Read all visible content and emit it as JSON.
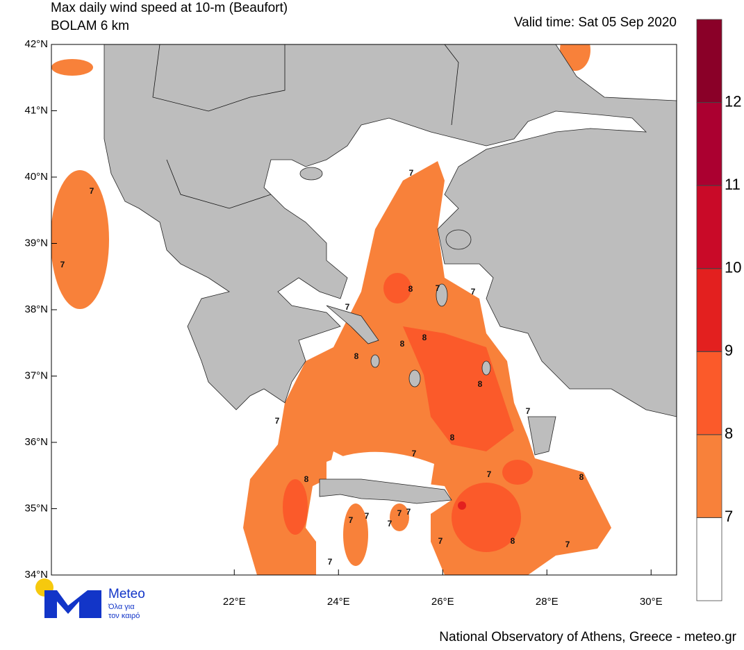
{
  "header": {
    "title": "Max daily wind speed at 10-m (Beaufort)",
    "model": "BOLAM 6 km",
    "valid_time": "Valid time: Sat 05 Sep 2020"
  },
  "map": {
    "lat_ticks": [
      {
        "value": 42,
        "label": "42°N"
      },
      {
        "value": 41,
        "label": "41°N"
      },
      {
        "value": 40,
        "label": "40°N"
      },
      {
        "value": 39,
        "label": "39°N"
      },
      {
        "value": 38,
        "label": "38°N"
      },
      {
        "value": 37,
        "label": "37°N"
      },
      {
        "value": 36,
        "label": "36°N"
      },
      {
        "value": 35,
        "label": "35°N"
      },
      {
        "value": 34,
        "label": "34°N"
      }
    ],
    "lon_ticks": [
      {
        "value": 22,
        "label": "22°E"
      },
      {
        "value": 24,
        "label": "24°E"
      },
      {
        "value": 26,
        "label": "26°E"
      },
      {
        "value": 28,
        "label": "28°E"
      },
      {
        "value": 30,
        "label": "30°E"
      }
    ],
    "lat_range": [
      34,
      42
    ],
    "lon_range": [
      18.49,
      30.49
    ],
    "contour_labels": [
      "7",
      "7",
      "7",
      "8",
      "7",
      "7",
      "7",
      "8",
      "8",
      "8",
      "8",
      "7",
      "8",
      "7",
      "7",
      "8",
      "7",
      "8",
      "7",
      "7",
      "7",
      "7",
      "7",
      "8",
      "7",
      "7",
      "7"
    ]
  },
  "colorbar": {
    "levels": [
      7,
      8,
      9,
      10,
      11,
      12
    ],
    "colors": [
      "#ffffff",
      "#f8813a",
      "#fb5a2a",
      "#e3201f",
      "#c90a28",
      "#ab0030",
      "#8a0028"
    ]
  },
  "logo": {
    "name": "Meteo",
    "line1": "Όλα για",
    "line2": "τον καιρό"
  },
  "footer": "National Observatory of Athens, Greece - meteo.gr"
}
